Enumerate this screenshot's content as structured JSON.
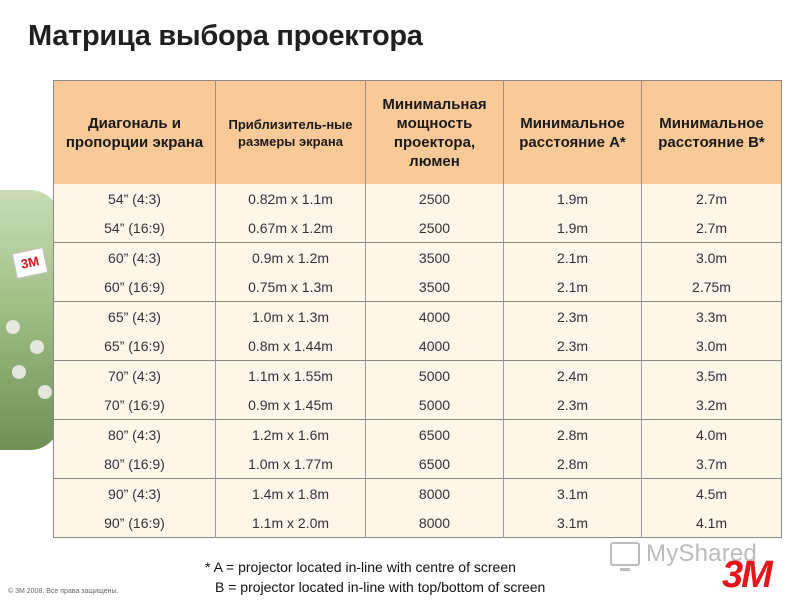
{
  "title": "Матрица выбора проектора",
  "headers": [
    "Диагональ и пропорции экрана",
    "Приблизитель-ные размеры экрана",
    "Минимальная мощность проектора, люмен",
    "Минимальное расстояние A*",
    "Минимальное расстояние B*"
  ],
  "rows": [
    [
      "54” (4:3)",
      "0.82m x 1.1m",
      "2500",
      "1.9m",
      "2.7m"
    ],
    [
      "54” (16:9)",
      "0.67m x 1.2m",
      "2500",
      "1.9m",
      "2.7m"
    ],
    [
      "60” (4:3)",
      "0.9m x 1.2m",
      "3500",
      "2.1m",
      "3.0m"
    ],
    [
      "60” (16:9)",
      "0.75m x 1.3m",
      "3500",
      "2.1m",
      "2.75m"
    ],
    [
      "65” (4:3)",
      "1.0m x 1.3m",
      "4000",
      "2.3m",
      "3.3m"
    ],
    [
      "65” (16:9)",
      "0.8m x 1.44m",
      "4000",
      "2.3m",
      "3.0m"
    ],
    [
      "70” (4:3)",
      "1.1m x 1.55m",
      "5000",
      "2.4m",
      "3.5m"
    ],
    [
      "70” (16:9)",
      "0.9m x 1.45m",
      "5000",
      "2.3m",
      "3.2m"
    ],
    [
      "80” (4:3)",
      "1.2m x 1.6m",
      "6500",
      "2.8m",
      "4.0m"
    ],
    [
      "80” (16:9)",
      "1.0m x 1.77m",
      "6500",
      "2.8m",
      "3.7m"
    ],
    [
      "90” (4:3)",
      "1.4m x 1.8m",
      "8000",
      "3.1m",
      "4.5m"
    ],
    [
      "90” (16:9)",
      "1.1m x 2.0m",
      "8000",
      "3.1m",
      "4.1m"
    ]
  ],
  "footnote": {
    "line1": "* A = projector located in-line with centre of screen",
    "line2": "B = projector located in-line with top/bottom of screen"
  },
  "copyright": "© 3M 2008. Все права защищены.",
  "watermark": "MyShared",
  "logo": "3M",
  "decor_flag": "3M",
  "colors": {
    "header_bg": "#f9c997",
    "cell_bg": "#fff6ea",
    "logo_red": "#e2151b"
  }
}
